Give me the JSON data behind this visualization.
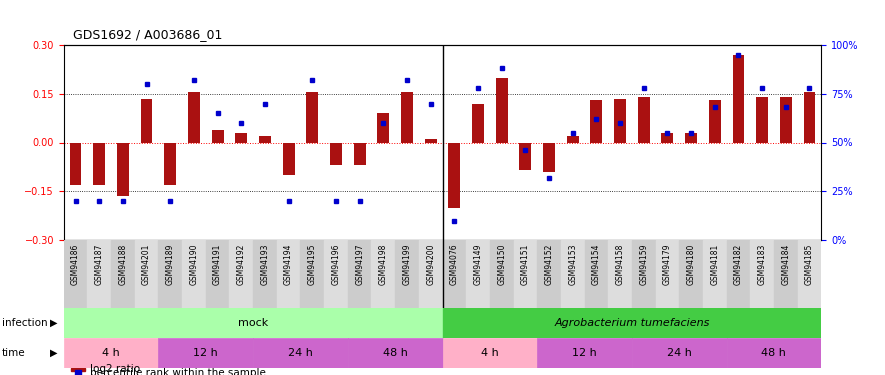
{
  "title": "GDS1692 / A003686_01",
  "samples": [
    "GSM94186",
    "GSM94187",
    "GSM94188",
    "GSM94201",
    "GSM94189",
    "GSM94190",
    "GSM94191",
    "GSM94192",
    "GSM94193",
    "GSM94194",
    "GSM94195",
    "GSM94196",
    "GSM94197",
    "GSM94198",
    "GSM94199",
    "GSM94200",
    "GSM94076",
    "GSM94149",
    "GSM94150",
    "GSM94151",
    "GSM94152",
    "GSM94153",
    "GSM94154",
    "GSM94158",
    "GSM94159",
    "GSM94179",
    "GSM94180",
    "GSM94181",
    "GSM94182",
    "GSM94183",
    "GSM94184",
    "GSM94185"
  ],
  "log2_ratio": [
    -0.13,
    -0.13,
    -0.165,
    0.135,
    -0.13,
    0.155,
    0.04,
    0.03,
    0.02,
    -0.1,
    0.155,
    -0.07,
    -0.07,
    0.09,
    0.155,
    0.01,
    -0.2,
    0.12,
    0.2,
    -0.085,
    -0.09,
    0.02,
    0.13,
    0.135,
    0.14,
    0.03,
    0.03,
    0.13,
    0.27,
    0.14,
    0.14,
    0.155
  ],
  "percentile": [
    20,
    20,
    20,
    80,
    20,
    82,
    65,
    60,
    70,
    20,
    82,
    20,
    20,
    60,
    82,
    70,
    10,
    78,
    88,
    46,
    32,
    55,
    62,
    60,
    78,
    55,
    55,
    68,
    95,
    78,
    68,
    78
  ],
  "time_groups": [
    {
      "label": "4 h",
      "start": 0,
      "end": 4,
      "color": "#FFB0C8"
    },
    {
      "label": "12 h",
      "start": 4,
      "end": 8,
      "color": "#CC66CC"
    },
    {
      "label": "24 h",
      "start": 8,
      "end": 12,
      "color": "#CC66CC"
    },
    {
      "label": "48 h",
      "start": 12,
      "end": 16,
      "color": "#CC66CC"
    },
    {
      "label": "4 h",
      "start": 16,
      "end": 20,
      "color": "#FFB0C8"
    },
    {
      "label": "12 h",
      "start": 20,
      "end": 24,
      "color": "#CC66CC"
    },
    {
      "label": "24 h",
      "start": 24,
      "end": 28,
      "color": "#CC66CC"
    },
    {
      "label": "48 h",
      "start": 28,
      "end": 32,
      "color": "#CC66CC"
    }
  ],
  "mock_color": "#AAFFAA",
  "agro_color": "#44CC44",
  "ylim": [
    -0.3,
    0.3
  ],
  "yticks_left": [
    -0.3,
    -0.15,
    0,
    0.15,
    0.3
  ],
  "yticks_right": [
    0,
    25,
    50,
    75,
    100
  ],
  "bar_color": "#AA1111",
  "dot_color": "#0000CC",
  "bg_color": "#FFFFFF",
  "tick_label_fontsize": 5.5,
  "annotation_fontsize": 8
}
